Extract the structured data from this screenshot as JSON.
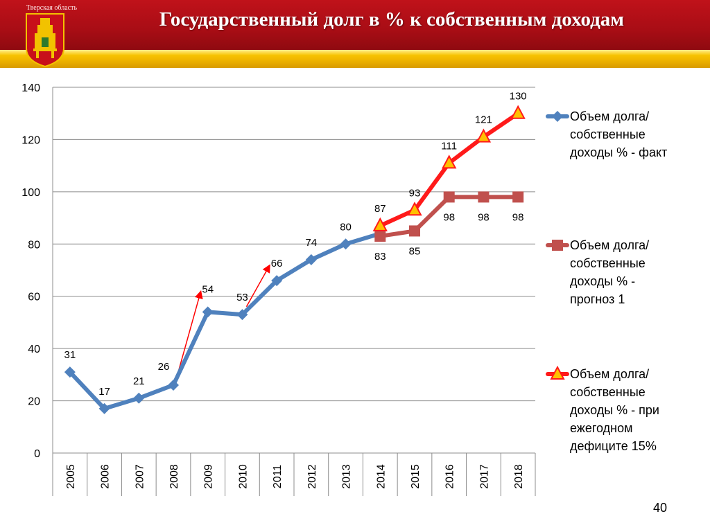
{
  "header": {
    "region": "Тверская область",
    "title": "Государственный долг в % к собственным доходам"
  },
  "page_number": "40",
  "colors": {
    "header_red": "#b00e16",
    "header_gold": "#f2b800",
    "fact": "#4f81bd",
    "forecast1": "#c0504d",
    "deficit15": "#ff1a1a",
    "triangle_fill": "#ffc000"
  },
  "chart_data": {
    "type": "line",
    "categories": [
      "2005",
      "2006",
      "2007",
      "2008",
      "2009",
      "2010",
      "2011",
      "2012",
      "2013",
      "2014",
      "2015",
      "2016",
      "2017",
      "2018"
    ],
    "ylim": [
      0,
      140
    ],
    "yticks": [
      0,
      20,
      40,
      60,
      80,
      100,
      120,
      140
    ],
    "grid": true,
    "legend": "right",
    "series": [
      {
        "name": "Объем долга/ собственные доходы % - факт",
        "legend_lines": [
          "Объем долга/",
          "собственные",
          "доходы % - факт"
        ],
        "marker": "diamond",
        "color": "#4f81bd",
        "values": [
          31,
          17,
          21,
          26,
          54,
          53,
          66,
          74,
          80,
          84,
          null,
          null,
          null,
          null
        ],
        "labels": [
          "31",
          "17",
          "21",
          "26",
          "54",
          "53",
          "66",
          "74",
          "80",
          "",
          "",
          "",
          "",
          ""
        ]
      },
      {
        "name": "Объем долга/ собственные доходы % - прогноз 1",
        "legend_lines": [
          "Объем долга/",
          "собственные",
          "доходы % -",
          "прогноз 1"
        ],
        "marker": "square",
        "color": "#c0504d",
        "values": [
          null,
          null,
          null,
          null,
          null,
          null,
          null,
          null,
          null,
          83,
          85,
          98,
          98,
          98
        ],
        "labels": [
          "",
          "",
          "",
          "",
          "",
          "",
          "",
          "",
          "",
          "83",
          "85",
          "98",
          "98",
          "98"
        ]
      },
      {
        "name": "Объем долга/ собственные доходы % - при ежегодном дефиците 15%",
        "legend_lines": [
          "Объем долга/",
          "собственные",
          "доходы % - при",
          "ежегодном",
          "дефиците 15%"
        ],
        "marker": "triangle",
        "color": "#ff1a1a",
        "values": [
          null,
          null,
          null,
          null,
          null,
          null,
          null,
          null,
          null,
          87,
          93,
          111,
          121,
          130
        ],
        "labels": [
          "",
          "",
          "",
          "",
          "",
          "",
          "",
          "",
          "",
          "87",
          "93",
          "111",
          "121",
          "130"
        ]
      }
    ]
  }
}
